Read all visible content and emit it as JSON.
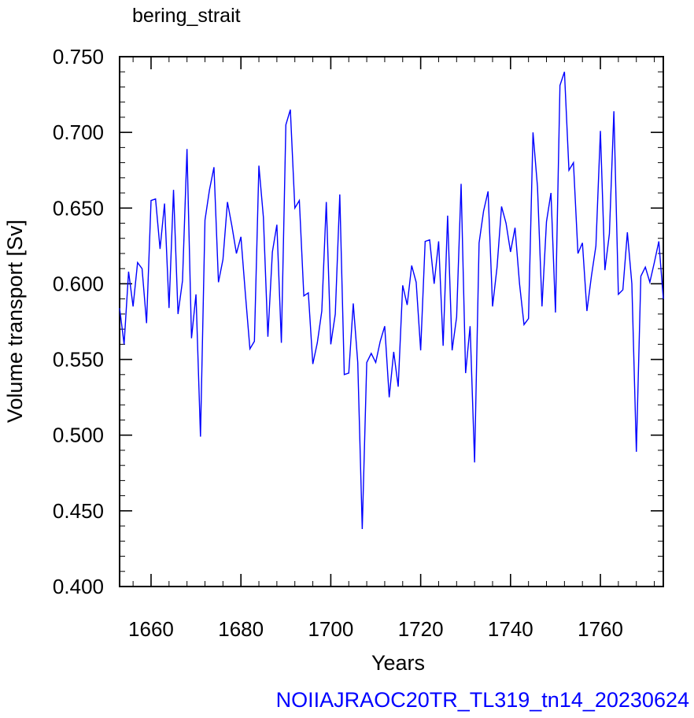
{
  "chart_data": {
    "type": "line",
    "title": "bering_strait",
    "xlabel": "Years",
    "ylabel": "Volume transport [Sv]",
    "footer": "NOIIAJRAOC20TR_TL319_tn14_20230624",
    "xlim": [
      1653,
      1774
    ],
    "ylim": [
      0.4,
      0.75
    ],
    "xticks": [
      1660,
      1680,
      1700,
      1720,
      1740,
      1760
    ],
    "xtick_labels": [
      "1660",
      "1680",
      "1700",
      "1720",
      "1740",
      "1760"
    ],
    "yticks": [
      0.4,
      0.45,
      0.5,
      0.55,
      0.6,
      0.65,
      0.7,
      0.75
    ],
    "ytick_labels": [
      "0.400",
      "0.450",
      "0.500",
      "0.550",
      "0.600",
      "0.650",
      "0.700",
      "0.750"
    ],
    "grid": false,
    "colors": {
      "line": "#0000ff",
      "footer": "#0000ff",
      "axes": "#000000"
    },
    "series": [
      {
        "x": [
          1653,
          1654,
          1655,
          1656,
          1657,
          1658,
          1659,
          1660,
          1661,
          1662,
          1663,
          1664,
          1665,
          1666,
          1667,
          1668,
          1669,
          1670,
          1671,
          1672,
          1673,
          1674,
          1675,
          1676,
          1677,
          1678,
          1679,
          1680,
          1681,
          1682,
          1683,
          1684,
          1685,
          1686,
          1687,
          1688,
          1689,
          1690,
          1691,
          1692,
          1693,
          1694,
          1695,
          1696,
          1697,
          1698,
          1699,
          1700,
          1701,
          1702,
          1703,
          1704,
          1705,
          1706,
          1707,
          1708,
          1709,
          1710,
          1711,
          1712,
          1713,
          1714,
          1715,
          1716,
          1717,
          1718,
          1719,
          1720,
          1721,
          1722,
          1723,
          1724,
          1725,
          1726,
          1727,
          1728,
          1729,
          1730,
          1731,
          1732,
          1733,
          1734,
          1735,
          1736,
          1737,
          1738,
          1739,
          1740,
          1741,
          1742,
          1743,
          1744,
          1745,
          1746,
          1747,
          1748,
          1749,
          1750,
          1751,
          1752,
          1753,
          1754,
          1755,
          1756,
          1757,
          1758,
          1759,
          1760,
          1761,
          1762,
          1763,
          1764,
          1765,
          1766,
          1767,
          1768,
          1769,
          1770,
          1771,
          1772,
          1773,
          1774
        ],
        "y": [
          0.584,
          0.56,
          0.608,
          0.585,
          0.614,
          0.61,
          0.574,
          0.655,
          0.656,
          0.623,
          0.653,
          0.584,
          0.662,
          0.58,
          0.602,
          0.689,
          0.564,
          0.593,
          0.499,
          0.642,
          0.662,
          0.677,
          0.601,
          0.616,
          0.654,
          0.638,
          0.62,
          0.631,
          0.593,
          0.557,
          0.562,
          0.678,
          0.644,
          0.565,
          0.621,
          0.639,
          0.561,
          0.705,
          0.715,
          0.65,
          0.655,
          0.592,
          0.594,
          0.547,
          0.561,
          0.582,
          0.654,
          0.56,
          0.58,
          0.659,
          0.54,
          0.541,
          0.587,
          0.548,
          0.438,
          0.548,
          0.554,
          0.548,
          0.562,
          0.572,
          0.525,
          0.555,
          0.532,
          0.599,
          0.586,
          0.612,
          0.601,
          0.556,
          0.628,
          0.629,
          0.6,
          0.628,
          0.559,
          0.645,
          0.556,
          0.578,
          0.666,
          0.541,
          0.572,
          0.482,
          0.627,
          0.648,
          0.661,
          0.585,
          0.611,
          0.651,
          0.64,
          0.621,
          0.637,
          0.6,
          0.573,
          0.577,
          0.7,
          0.664,
          0.585,
          0.641,
          0.66,
          0.581,
          0.731,
          0.74,
          0.675,
          0.68,
          0.62,
          0.627,
          0.582,
          0.605,
          0.625,
          0.701,
          0.609,
          0.633,
          0.714,
          0.593,
          0.596,
          0.634,
          0.6,
          0.489,
          0.605,
          0.611,
          0.601,
          0.614,
          0.628,
          0.59
        ]
      }
    ]
  }
}
